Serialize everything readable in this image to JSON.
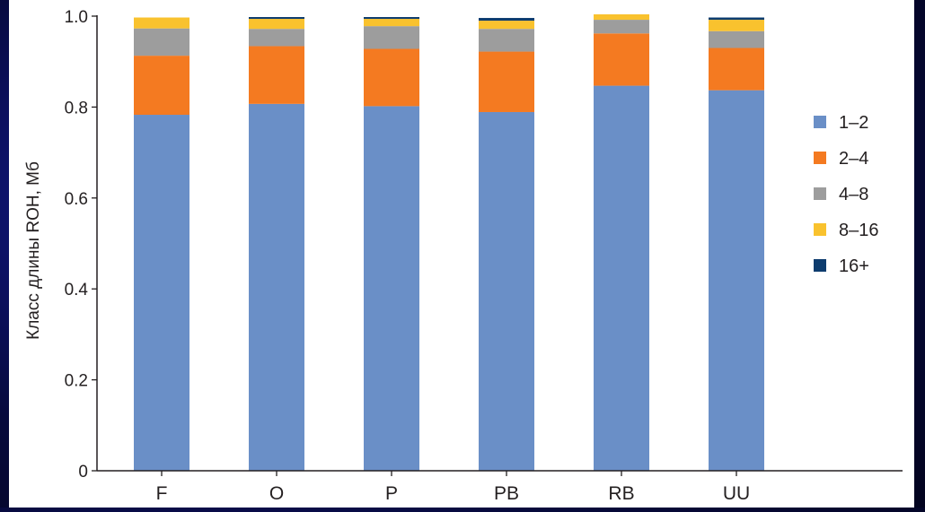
{
  "chart_data": {
    "type": "bar",
    "stacked": true,
    "ylabel": "Класс длины ROH, Мб",
    "ylim": [
      0,
      1.0
    ],
    "yticks": [
      "0",
      "0.2",
      "0.4",
      "0.6",
      "0.8",
      "1.0"
    ],
    "categories": [
      "F",
      "O",
      "P",
      "PB",
      "RB",
      "UU"
    ],
    "series": [
      {
        "name": "1–2",
        "color": "#6a8fc7",
        "values": [
          0.783,
          0.807,
          0.802,
          0.789,
          0.847,
          0.837
        ]
      },
      {
        "name": "2–4",
        "color": "#f47a21",
        "values": [
          0.13,
          0.127,
          0.126,
          0.133,
          0.115,
          0.093
        ]
      },
      {
        "name": "4–8",
        "color": "#9d9d9d",
        "values": [
          0.06,
          0.038,
          0.05,
          0.05,
          0.03,
          0.037
        ]
      },
      {
        "name": "8–16",
        "color": "#f9c22e",
        "values": [
          0.024,
          0.022,
          0.016,
          0.018,
          0.012,
          0.025
        ]
      },
      {
        "name": "16+",
        "color": "#0d3c6e",
        "values": [
          0.0,
          0.004,
          0.004,
          0.006,
          0.0,
          0.005
        ]
      }
    ],
    "legend": "right",
    "grid": false
  }
}
